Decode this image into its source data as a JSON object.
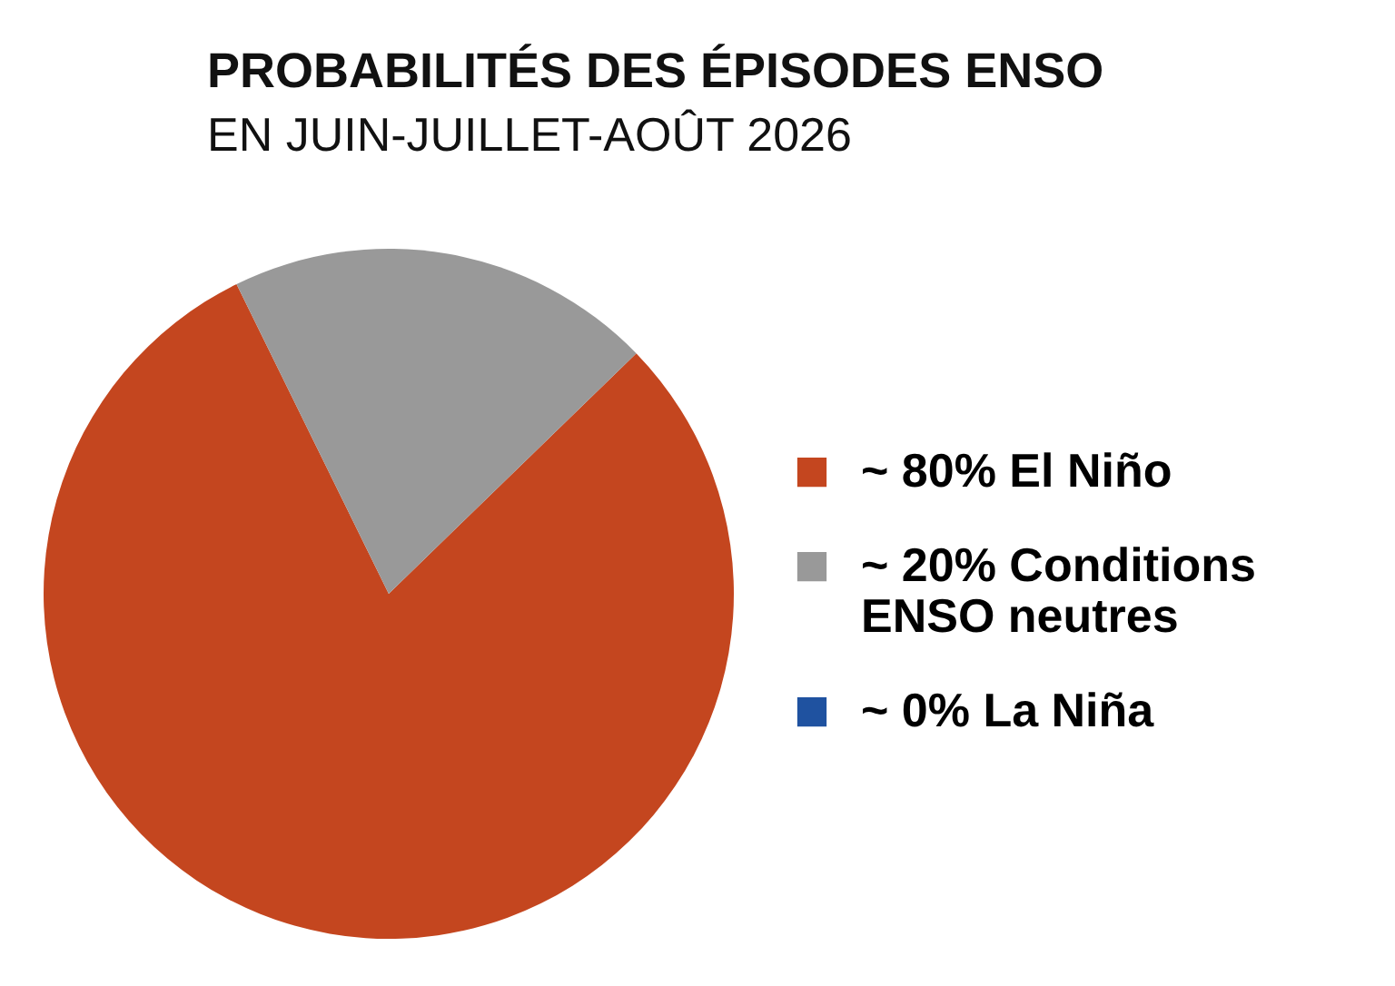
{
  "chart_data": {
    "type": "pie",
    "title": "PROBABILITÉS DES ÉPISODES ENSO",
    "subtitle": "EN JUIN-JUILLET-AOÛT 2026",
    "categories": [
      "El Niño",
      "Conditions ENSO neutres",
      "La Niña"
    ],
    "values": [
      80,
      20,
      0
    ],
    "value_labels": [
      "~ 80%",
      "~ 20%",
      "~ 0%"
    ],
    "colors": [
      "#c4461f",
      "#999999",
      "#1f52a0"
    ],
    "legend": "right"
  }
}
